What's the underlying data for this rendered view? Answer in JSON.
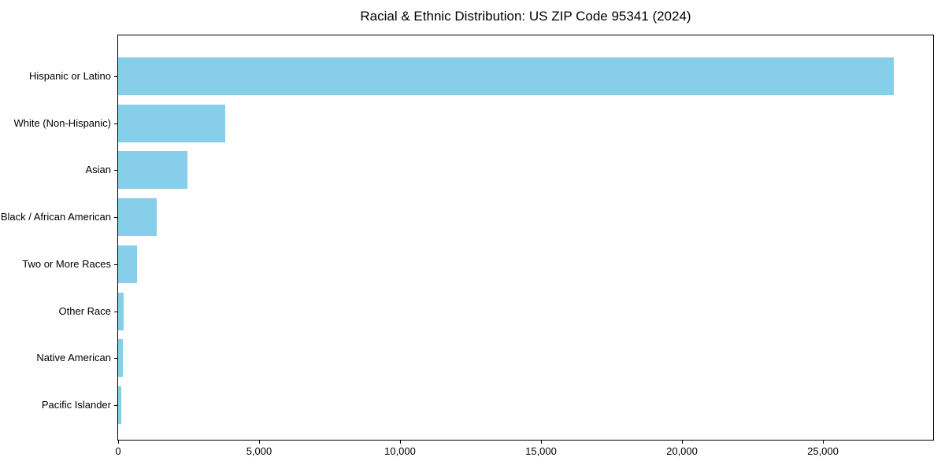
{
  "chart_data": {
    "type": "bar",
    "orientation": "horizontal",
    "title": "Racial & Ethnic Distribution: US ZIP Code 95341 (2024)",
    "categories": [
      "Hispanic or Latino",
      "White (Non-Hispanic)",
      "Asian",
      "Black / African American",
      "Two or More Races",
      "Other Race",
      "Native American",
      "Pacific Islander"
    ],
    "values": [
      27500,
      3800,
      2460,
      1370,
      660,
      200,
      160,
      120
    ],
    "category_slugs": [
      "hispanic-or-latino",
      "white-non-hispanic",
      "asian",
      "black-african-american",
      "two-or-more-races",
      "other-race",
      "native-american",
      "pacific-islander"
    ],
    "xlabel": "",
    "ylabel": "",
    "xlim": [
      0,
      28900
    ],
    "xticks": [
      0,
      5000,
      10000,
      15000,
      20000,
      25000
    ],
    "xtick_labels": [
      "0",
      "5,000",
      "10,000",
      "15,000",
      "20,000",
      "25,000"
    ],
    "bar_color": "#87CEEB",
    "frame_color": "#000000",
    "grid": false,
    "legend": null
  }
}
